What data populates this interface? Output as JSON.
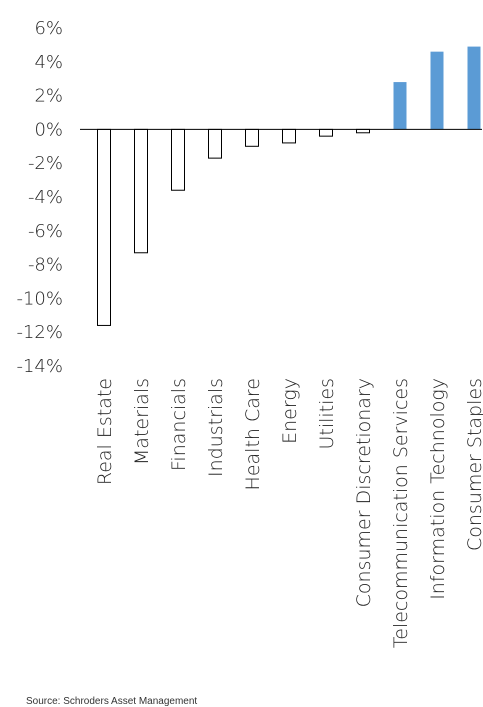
{
  "chart_data": {
    "type": "bar",
    "categories": [
      "Real Estate",
      "Materials",
      "Financials",
      "Industrials",
      "Health Care",
      "Energy",
      "Utilities",
      "Consumer Discretionary",
      "Telecommunication Services",
      "Information Technology",
      "Consumer Staples"
    ],
    "values": [
      -11.6,
      -7.3,
      -3.6,
      -1.7,
      -1.0,
      -0.8,
      -0.4,
      -0.2,
      2.8,
      4.6,
      4.9
    ],
    "title": "",
    "xlabel": "",
    "ylabel": "",
    "ylim": [
      -14,
      6
    ],
    "ytick_step": 2,
    "ytick_labels": [
      "6%",
      "4%",
      "2%",
      "0%",
      "-2%",
      "-4%",
      "-6%",
      "-8%",
      "-10%",
      "-12%",
      "-14%"
    ],
    "grid": false,
    "colors": {
      "positive_fill": "#5b9bd5",
      "negative_fill": "#ffffff",
      "negative_stroke": "#000000",
      "axis": "#000000"
    }
  },
  "source_note": "Source: Schroders Asset Management"
}
